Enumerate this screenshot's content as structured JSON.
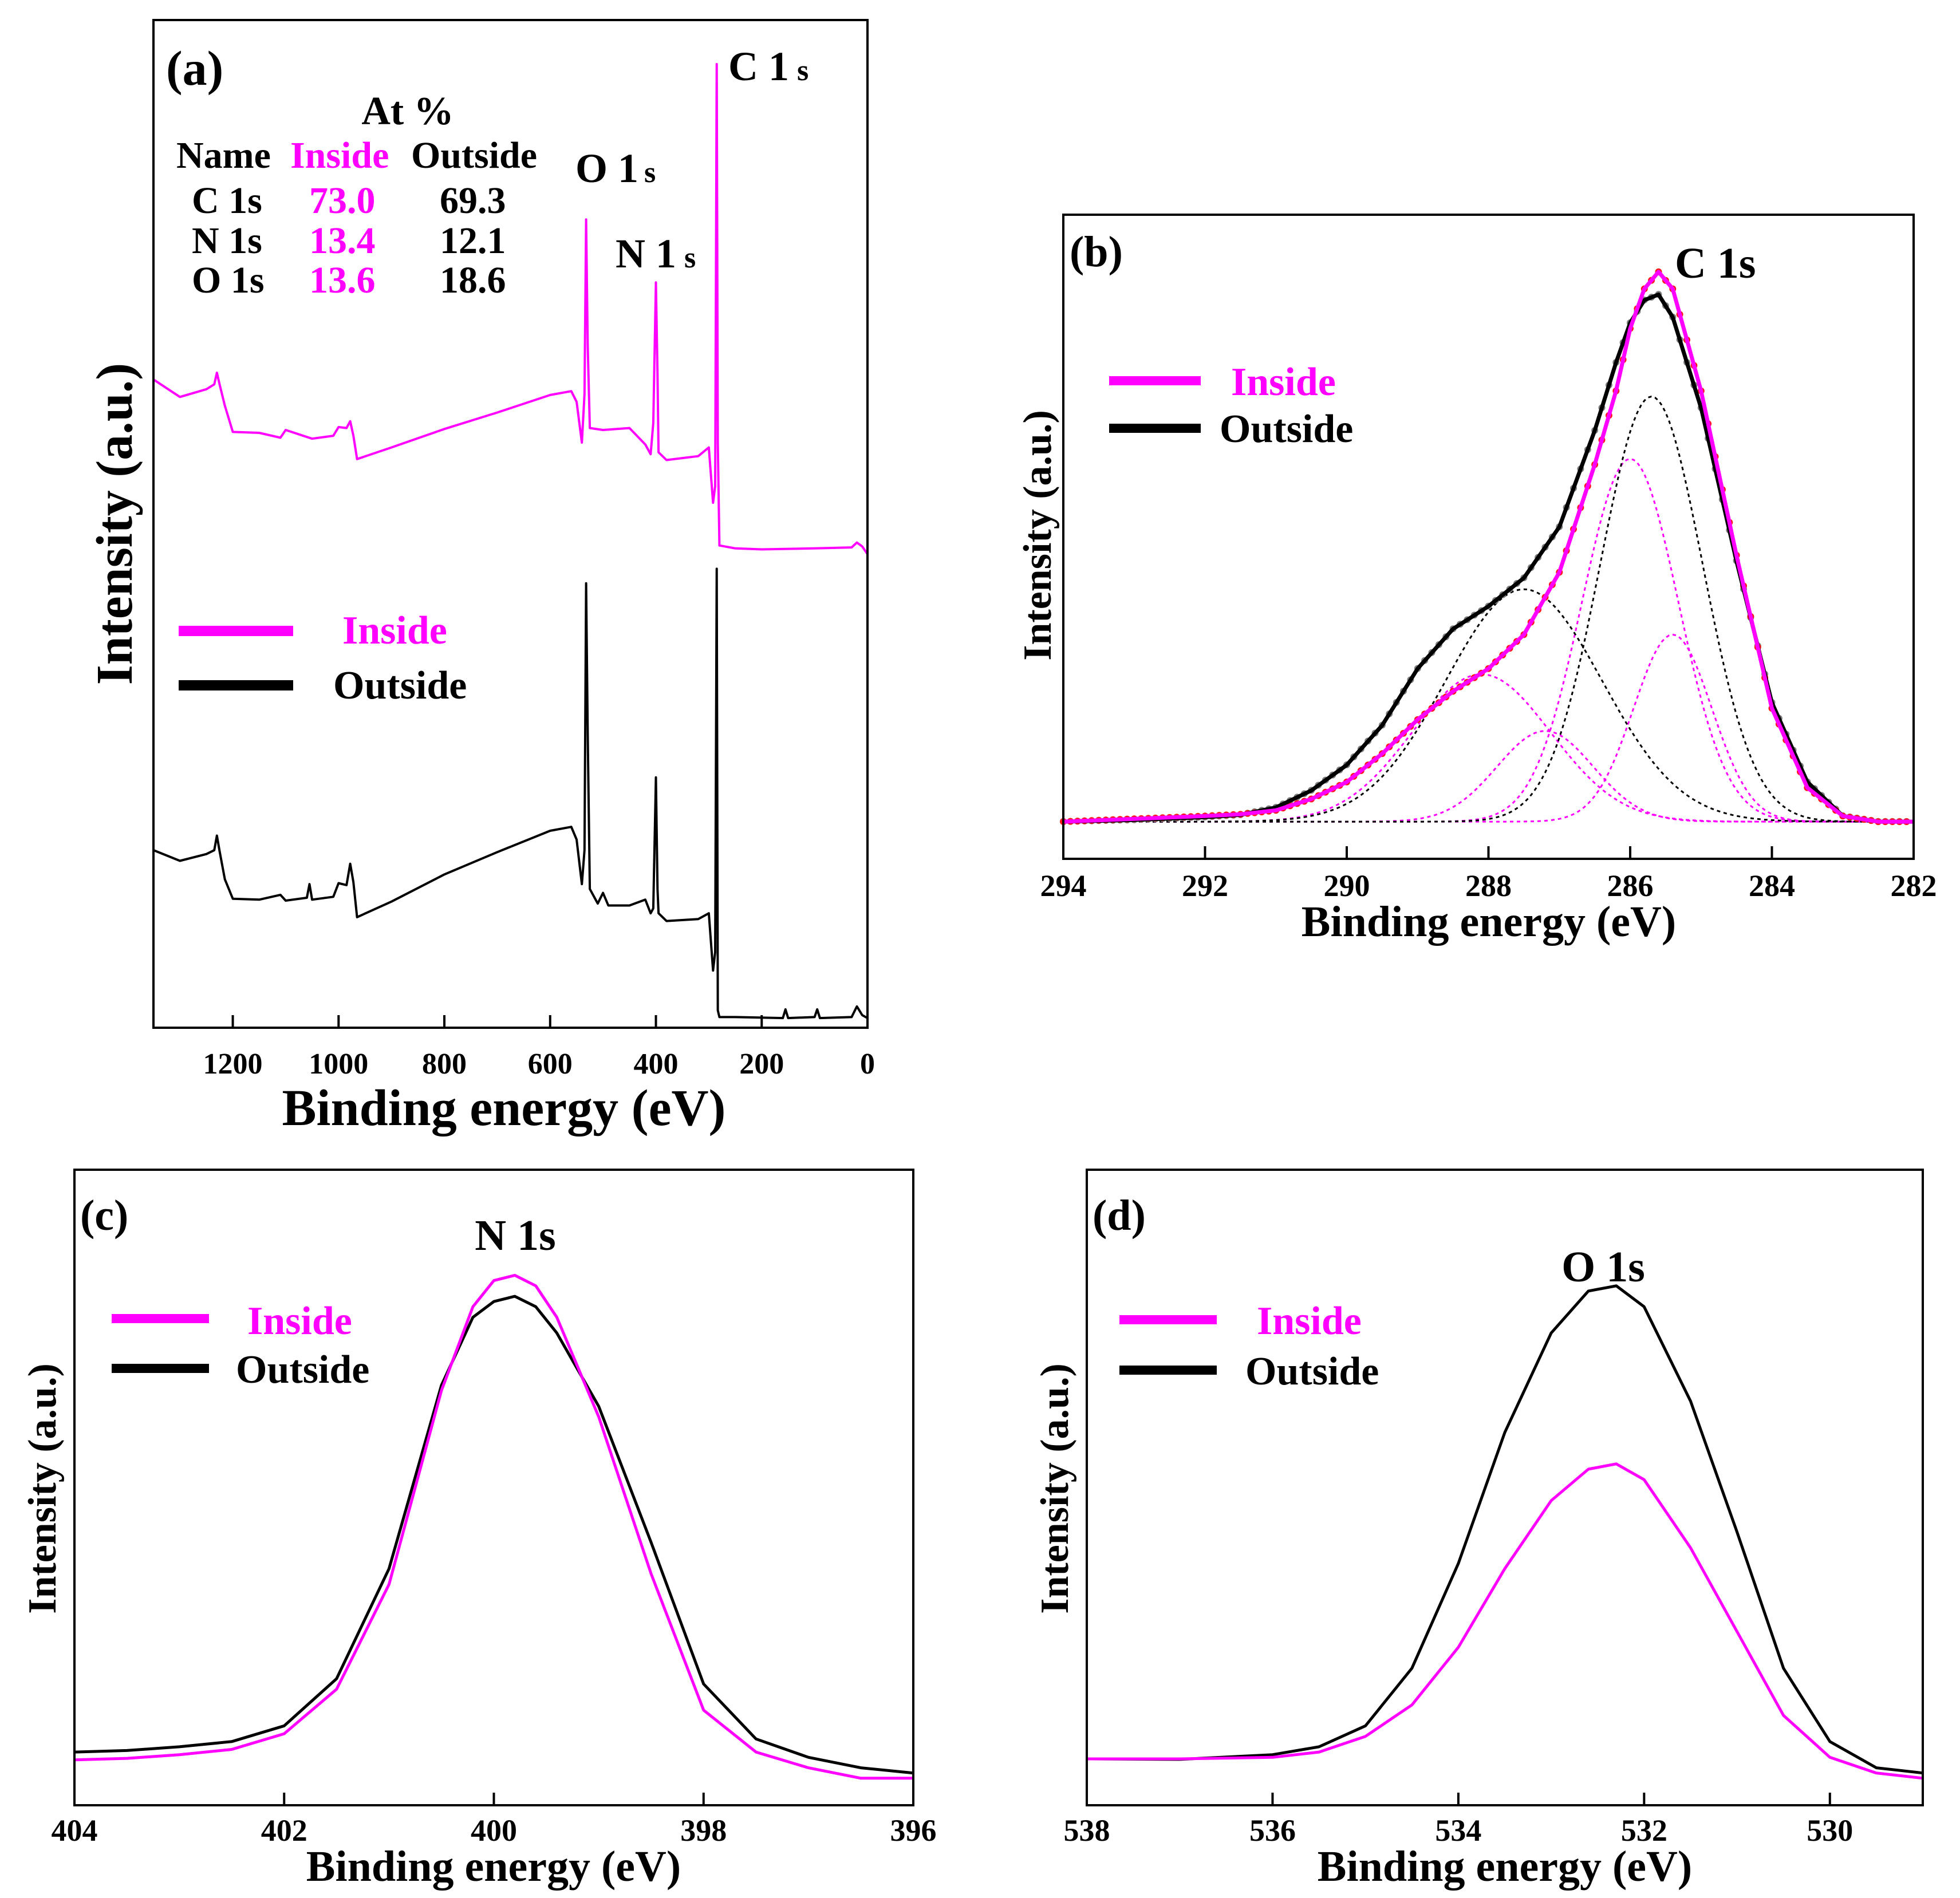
{
  "colors": {
    "inside": "#ff00ff",
    "outside": "#000000",
    "fit_inside_dots": "#ff1a1a",
    "fit_outside_dots": "#808080"
  },
  "chart_data": [
    {
      "id": "a",
      "type": "line",
      "panel_label": "(a)",
      "xlabel": "Binding energy (eV)",
      "ylabel": "Intensity (a.u.)",
      "xlim": [
        1350,
        0
      ],
      "ylim": [
        0,
        100
      ],
      "x_ticks": [
        1200,
        1000,
        800,
        600,
        400,
        200,
        0
      ],
      "legend": {
        "placement": "center-left",
        "entries": [
          "Inside",
          "Outside"
        ]
      },
      "peak_labels": [
        {
          "text_main": "C 1",
          "text_sub": "s",
          "x": 285
        },
        {
          "text_main": "O 1",
          "text_sub": "s",
          "x": 532
        },
        {
          "text_main": "N 1",
          "text_sub": "s",
          "x": 400
        }
      ],
      "table": {
        "caption": "At %",
        "headers": [
          "Name",
          "Inside",
          "Outside"
        ],
        "rows": [
          [
            "C 1s",
            "73.0",
            "69.3"
          ],
          [
            "N 1s",
            "13.4",
            "12.1"
          ],
          [
            "O 1s",
            "13.6",
            "18.6"
          ]
        ]
      },
      "series": [
        {
          "name": "Inside",
          "x": [
            1350,
            1300,
            1250,
            1235,
            1230,
            1225,
            1215,
            1200,
            1150,
            1110,
            1100,
            1050,
            1010,
            1000,
            985,
            978,
            972,
            965,
            900,
            800,
            700,
            600,
            560,
            550,
            540,
            535,
            532,
            529,
            525,
            500,
            450,
            420,
            410,
            405,
            400,
            397,
            395,
            380,
            320,
            300,
            292,
            288,
            285,
            283,
            280,
            250,
            200,
            100,
            30,
            20,
            10,
            0
          ],
          "y": [
            66.5,
            64.7,
            65.5,
            66.0,
            67.2,
            66.0,
            63.8,
            61.1,
            61.0,
            60.5,
            61.3,
            60.4,
            60.7,
            61.6,
            61.5,
            62.2,
            60.7,
            58.3,
            59.5,
            61.4,
            63.1,
            64.9,
            65.3,
            64.2,
            60.0,
            65.0,
            83.0,
            70.0,
            61.5,
            61.3,
            61.5,
            59.8,
            58.8,
            62.0,
            76.5,
            67.0,
            59.0,
            58.2,
            58.6,
            59.5,
            53.8,
            55.5,
            99.0,
            60.0,
            49.4,
            49.1,
            49.0,
            49.1,
            49.2,
            49.7,
            49.3,
            48.5
          ]
        },
        {
          "name": "Outside",
          "x": [
            1350,
            1300,
            1250,
            1235,
            1230,
            1225,
            1215,
            1200,
            1150,
            1110,
            1100,
            1060,
            1055,
            1050,
            1010,
            1000,
            985,
            978,
            972,
            965,
            900,
            800,
            700,
            600,
            560,
            550,
            540,
            535,
            532,
            529,
            525,
            510,
            500,
            490,
            450,
            420,
            410,
            405,
            400,
            397,
            395,
            380,
            320,
            300,
            292,
            288,
            285,
            283,
            280,
            250,
            160,
            155,
            150,
            100,
            95,
            90,
            30,
            20,
            10,
            0
          ],
          "y": [
            18.0,
            16.9,
            17.6,
            18.0,
            19.5,
            17.9,
            15.0,
            13.0,
            12.9,
            13.4,
            12.8,
            13.1,
            14.5,
            12.9,
            13.2,
            14.6,
            14.4,
            16.6,
            14.7,
            11.1,
            12.7,
            15.5,
            17.8,
            20.0,
            20.4,
            19.1,
            14.5,
            18.0,
            45.5,
            30.0,
            14.0,
            12.5,
            13.6,
            12.3,
            12.3,
            12.9,
            11.5,
            12.0,
            25.5,
            14.0,
            11.5,
            10.7,
            10.9,
            11.5,
            5.6,
            7.5,
            47.0,
            1.5,
            0.8,
            0.8,
            0.7,
            1.6,
            0.7,
            0.8,
            1.6,
            0.7,
            0.8,
            1.9,
            1.0,
            0.7
          ]
        }
      ]
    },
    {
      "id": "b",
      "type": "line",
      "panel_label": "(b)",
      "peak_label": "C 1s",
      "xlabel": "Binding energy (eV)",
      "ylabel": "Intensity (a.u.)",
      "xlim": [
        294,
        282
      ],
      "ylim": [
        0,
        100
      ],
      "x_ticks": [
        294,
        292,
        290,
        288,
        286,
        284,
        282
      ],
      "legend": {
        "placement": "top-left",
        "entries": [
          "Inside",
          "Outside"
        ]
      },
      "series": [
        {
          "name": "Inside",
          "x": [
            294,
            293,
            292,
            291.5,
            291,
            290.5,
            290,
            289.5,
            289,
            288.5,
            288,
            287.5,
            287,
            286.5,
            286.2,
            286,
            285.8,
            285.6,
            285.4,
            285,
            284.5,
            284,
            283.5,
            283,
            282.5,
            282
          ],
          "y": [
            1,
            1.5,
            2,
            2.3,
            3,
            5,
            8,
            13,
            19,
            24,
            28,
            34,
            45,
            64,
            77,
            88,
            95,
            98,
            95,
            77,
            48,
            21,
            7,
            2,
            1,
            1
          ]
        },
        {
          "name": "Outside",
          "x": [
            294,
            293,
            292,
            291.5,
            291,
            290.5,
            290,
            289.5,
            289,
            288.5,
            288,
            287.5,
            287,
            286.5,
            286.2,
            286,
            285.8,
            285.6,
            285.4,
            285,
            284.5,
            284,
            283.5,
            283,
            282.5,
            282
          ],
          "y": [
            1,
            1.3,
            1.8,
            2.2,
            3.5,
            6.5,
            11,
            18,
            28,
            35,
            39,
            44,
            53,
            70,
            82,
            89,
            93,
            94,
            90,
            74,
            47,
            22,
            8,
            2,
            1,
            1
          ]
        }
      ],
      "fit_components": [
        {
          "group": "Inside",
          "center": 288.1,
          "height": 26,
          "fwhm": 2.3
        },
        {
          "group": "Inside",
          "center": 287.2,
          "height": 16,
          "fwhm": 1.6
        },
        {
          "group": "Inside",
          "center": 286.0,
          "height": 64,
          "fwhm": 1.6
        },
        {
          "group": "Inside",
          "center": 285.4,
          "height": 33,
          "fwhm": 1.3
        },
        {
          "group": "Outside",
          "center": 287.5,
          "height": 41,
          "fwhm": 2.6
        },
        {
          "group": "Outside",
          "center": 285.7,
          "height": 75,
          "fwhm": 1.7
        }
      ]
    },
    {
      "id": "c",
      "type": "line",
      "panel_label": "(c)",
      "peak_label": "N 1s",
      "xlabel": "Binding energy (eV)",
      "ylabel": "Intensity (a.u.)",
      "xlim": [
        404,
        396
      ],
      "ylim": [
        0,
        100
      ],
      "x_ticks": [
        404,
        402,
        400,
        398,
        396
      ],
      "legend": {
        "placement": "top-left",
        "entries": [
          "Inside",
          "Outside"
        ]
      },
      "series": [
        {
          "name": "Inside",
          "x": [
            404,
            403.5,
            403,
            402.5,
            402,
            401.5,
            401,
            400.5,
            400.2,
            400,
            399.8,
            399.6,
            399.4,
            399,
            398.5,
            398,
            397.5,
            397,
            396.5,
            396
          ],
          "y": [
            4.5,
            4.8,
            5.5,
            6.5,
            9.5,
            18,
            38,
            75,
            91,
            96,
            97,
            95,
            89,
            70,
            40,
            14,
            6,
            3,
            1,
            1
          ]
        },
        {
          "name": "Outside",
          "x": [
            404,
            403.5,
            403,
            402.5,
            402,
            401.5,
            401,
            400.5,
            400.2,
            400,
            399.8,
            399.6,
            399.4,
            399,
            398.5,
            398,
            397.5,
            397,
            396.5,
            396
          ],
          "y": [
            6,
            6.3,
            7,
            8,
            11,
            20,
            41,
            76,
            89,
            92,
            93,
            91,
            86,
            72,
            46,
            19,
            8.5,
            5,
            3,
            2
          ]
        }
      ]
    },
    {
      "id": "d",
      "type": "line",
      "panel_label": "(d)",
      "peak_label": "O 1s",
      "xlabel": "Binding energy (eV)",
      "ylabel": "Intensity (a.u.)",
      "xlim": [
        538,
        529
      ],
      "ylim": [
        0,
        100
      ],
      "x_ticks": [
        538,
        536,
        534,
        532,
        530
      ],
      "legend": {
        "placement": "top-left",
        "entries": [
          "Inside",
          "Outside"
        ]
      },
      "series": [
        {
          "name": "Inside",
          "x": [
            538,
            537,
            536,
            535.5,
            535,
            534.5,
            534,
            533.5,
            533,
            532.6,
            532.3,
            532,
            531.5,
            531,
            530.5,
            530,
            529.5,
            529
          ],
          "y": [
            4.7,
            4.7,
            5,
            6,
            9,
            15,
            26,
            41,
            54,
            60,
            61,
            58,
            45,
            29,
            13,
            5,
            2,
            1
          ]
        },
        {
          "name": "Outside",
          "x": [
            538,
            537,
            536,
            535.5,
            535,
            534.5,
            534,
            533.5,
            533,
            532.6,
            532.3,
            532,
            531.5,
            531,
            530.5,
            530,
            529.5,
            529
          ],
          "y": [
            4.7,
            4.6,
            5.5,
            7,
            11,
            22,
            42,
            67,
            86,
            94,
            95,
            91,
            73,
            48,
            22,
            8,
            3,
            2
          ]
        }
      ]
    }
  ]
}
